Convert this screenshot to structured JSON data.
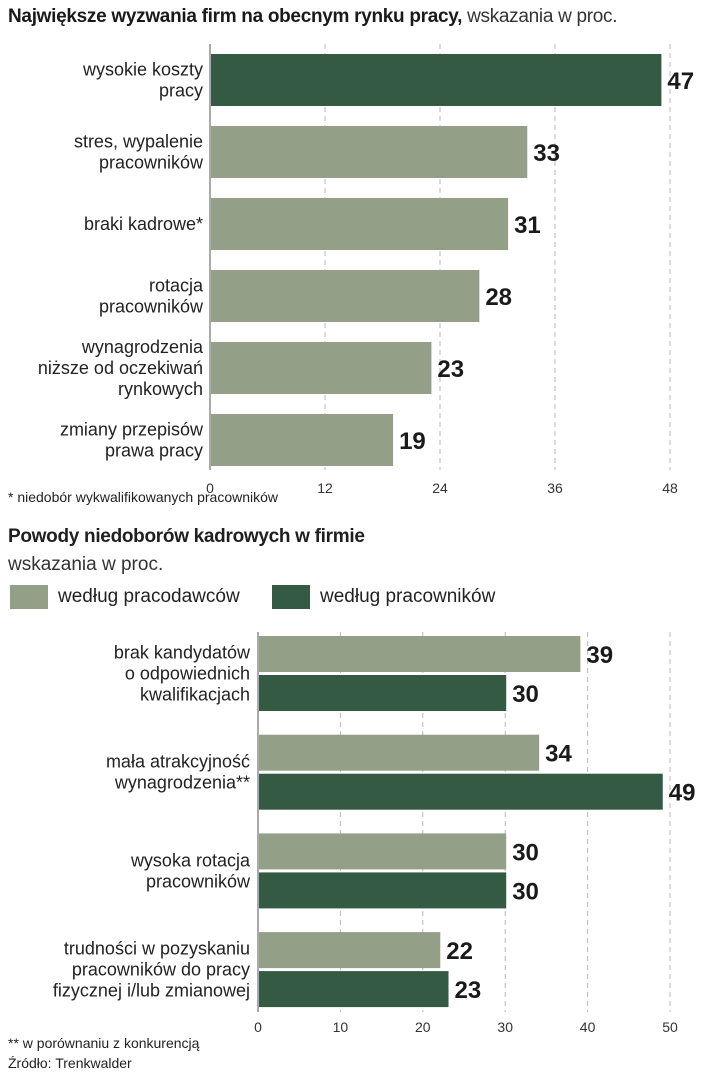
{
  "colors": {
    "dark": "#345a44",
    "light": "#949f88",
    "grid": "#b8b8b8",
    "axis": "#555555"
  },
  "chart1": {
    "title_bold": "Największe wyzwania firm na obecnym rynku pracy,",
    "title_rest": " wskazania w proc.",
    "footnote": "* niedobór wykwalifikowanych pracowników"
  },
  "chart2": {
    "title": "Powody niedoborów kadrowych w firmie",
    "subtitle": "wskazania w proc.",
    "legend": [
      {
        "label": "według pracodawców",
        "color": "#949f88"
      },
      {
        "label": "według pracowników",
        "color": "#345a44"
      }
    ],
    "footnote": "** w porównaniu z konkurencją",
    "source": "Źródło: Trenkwalder"
  },
  "chart_data": [
    {
      "type": "bar",
      "orientation": "horizontal",
      "title": "Największe wyzwania firm na obecnym rynku pracy, wskazania w proc.",
      "categories": [
        [
          "wysokie koszty",
          "pracy"
        ],
        [
          "stres, wypalenie",
          "pracowników"
        ],
        [
          "braki kadrowe*"
        ],
        [
          "rotacja",
          "pracowników"
        ],
        [
          "wynagrodzenia",
          "niższe od oczekiwań",
          "rynkowych"
        ],
        [
          "zmiany przepisów",
          "prawa pracy"
        ]
      ],
      "values": [
        47,
        33,
        31,
        28,
        23,
        19
      ],
      "highlight": [
        true,
        false,
        false,
        false,
        false,
        false
      ],
      "xlim": [
        0,
        48
      ],
      "xticks": [
        0,
        12,
        24,
        36,
        48
      ],
      "grid": true
    },
    {
      "type": "bar",
      "orientation": "horizontal",
      "title": "Powody niedoborów kadrowych w firmie",
      "categories": [
        [
          "brak kandydatów",
          "o odpowiednich",
          "kwalifikacjach"
        ],
        [
          "mała atrakcyjność",
          "wynagrodzenia**"
        ],
        [
          "wysoka rotacja",
          "pracowników"
        ],
        [
          "trudności w pozyskaniu",
          "pracowników do pracy",
          "fizycznej i/lub zmianowej"
        ]
      ],
      "series": [
        {
          "name": "według pracodawców",
          "values": [
            39,
            34,
            30,
            22
          ]
        },
        {
          "name": "według pracowników",
          "values": [
            30,
            49,
            30,
            23
          ]
        }
      ],
      "xlim": [
        0,
        50
      ],
      "xticks": [
        0,
        10,
        20,
        30,
        40,
        50
      ],
      "grid": true,
      "legend": "top-left"
    }
  ]
}
